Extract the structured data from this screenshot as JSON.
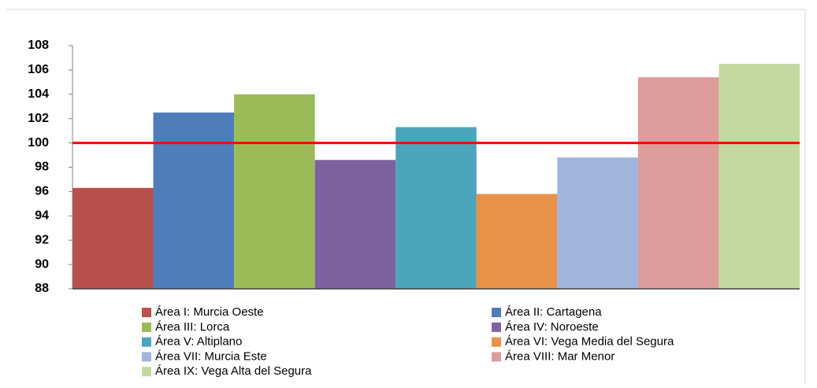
{
  "chart_data": {
    "type": "bar",
    "series": [
      {
        "name": "Área I: Murcia Oeste",
        "color": "#b9504c",
        "values": [
          96.3
        ]
      },
      {
        "name": "Área II: Cartagena",
        "color": "#4f7dba",
        "values": [
          102.5
        ]
      },
      {
        "name": "Área III: Lorca",
        "color": "#9bbb59",
        "values": [
          104
        ]
      },
      {
        "name": "Área IV: Noroeste",
        "color": "#7e62a0",
        "values": [
          98.6
        ]
      },
      {
        "name": "Área V: Altiplano",
        "color": "#4aa5bb",
        "values": [
          101.3
        ]
      },
      {
        "name": "Área VI: Vega Media del Segura",
        "color": "#e8914a",
        "values": [
          95.8
        ]
      },
      {
        "name": "Área VII: Murcia Este",
        "color": "#a0b4dc",
        "values": [
          98.8
        ]
      },
      {
        "name": "Área VIII:  Mar Menor",
        "color": "#dd9c9c",
        "values": [
          105.4
        ]
      },
      {
        "name": "Área IX: Vega Alta del Segura",
        "color": "#c4d9a0",
        "values": [
          106.5
        ]
      }
    ],
    "ylim": [
      88,
      108
    ],
    "yticks": [
      88,
      90,
      92,
      94,
      96,
      98,
      100,
      102,
      104,
      106,
      108
    ],
    "reference_line": {
      "value": 100,
      "color": "#ff0000"
    },
    "legend": "bottom",
    "legend_columns": 2
  }
}
